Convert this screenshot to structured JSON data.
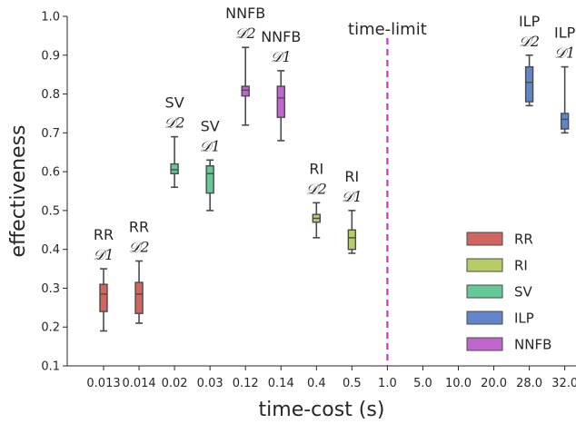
{
  "chart_data": {
    "type": "box",
    "title": "",
    "xlabel": "time-cost (s)",
    "ylabel": "effectiveness",
    "ylim": [
      0.1,
      1.0
    ],
    "yticks": [
      "0.1",
      "0.2",
      "0.3",
      "0.4",
      "0.5",
      "0.6",
      "0.7",
      "0.8",
      "0.9",
      "1.0"
    ],
    "categories": [
      "0.013",
      "0.014",
      "0.02",
      "0.03",
      "0.12",
      "0.14",
      "0.4",
      "0.5",
      "1.0",
      "5.0",
      "10.0",
      "20.0",
      "28.0",
      "32.0"
    ],
    "grid": false,
    "vline": {
      "category": "1.0",
      "label": "time-limit",
      "color": "#cc33cc"
    },
    "legend": {
      "position": "bottom-right",
      "entries": [
        {
          "name": "RR",
          "color": "#cf6760"
        },
        {
          "name": "RI",
          "color": "#b6cc66"
        },
        {
          "name": "SV",
          "color": "#66c897"
        },
        {
          "name": "ILP",
          "color": "#6185c8"
        },
        {
          "name": "NNFB",
          "color": "#bf66cc"
        }
      ]
    },
    "boxes": [
      {
        "category": "0.013",
        "group": "RR",
        "label": "RR",
        "sub": "𝒟1",
        "whisker_low": 0.19,
        "q1": 0.24,
        "median": 0.285,
        "q3": 0.31,
        "whisker_high": 0.35,
        "color": "#cf6760"
      },
      {
        "category": "0.014",
        "group": "RR",
        "label": "RR",
        "sub": "𝒟2",
        "whisker_low": 0.21,
        "q1": 0.235,
        "median": 0.285,
        "q3": 0.315,
        "whisker_high": 0.37,
        "color": "#cf6760"
      },
      {
        "category": "0.02",
        "group": "SV",
        "label": "SV",
        "sub": "𝒟2",
        "whisker_low": 0.56,
        "q1": 0.595,
        "median": 0.605,
        "q3": 0.62,
        "whisker_high": 0.69,
        "color": "#66c897"
      },
      {
        "category": "0.03",
        "group": "SV",
        "label": "SV",
        "sub": "𝒟1",
        "whisker_low": 0.5,
        "q1": 0.545,
        "median": 0.595,
        "q3": 0.615,
        "whisker_high": 0.63,
        "color": "#66c897"
      },
      {
        "category": "0.12",
        "group": "NNFB",
        "label": "NNFB",
        "sub": "𝒟2",
        "whisker_low": 0.72,
        "q1": 0.795,
        "median": 0.81,
        "q3": 0.82,
        "whisker_high": 0.92,
        "color": "#bf66cc"
      },
      {
        "category": "0.14",
        "group": "NNFB",
        "label": "NNFB",
        "sub": "𝒟1",
        "whisker_low": 0.68,
        "q1": 0.74,
        "median": 0.79,
        "q3": 0.82,
        "whisker_high": 0.86,
        "color": "#bf66cc"
      },
      {
        "category": "0.4",
        "group": "RI",
        "label": "RI",
        "sub": "𝒟2",
        "whisker_low": 0.43,
        "q1": 0.47,
        "median": 0.48,
        "q3": 0.49,
        "whisker_high": 0.52,
        "color": "#b6cc66"
      },
      {
        "category": "0.5",
        "group": "RI",
        "label": "RI",
        "sub": "𝒟1",
        "whisker_low": 0.39,
        "q1": 0.4,
        "median": 0.43,
        "q3": 0.45,
        "whisker_high": 0.5,
        "color": "#b6cc66"
      },
      {
        "category": "28.0",
        "group": "ILP",
        "label": "ILP",
        "sub": "𝒟2",
        "whisker_low": 0.77,
        "q1": 0.78,
        "median": 0.83,
        "q3": 0.87,
        "whisker_high": 0.9,
        "color": "#6185c8"
      },
      {
        "category": "32.0",
        "group": "ILP",
        "label": "ILP",
        "sub": "𝒟1",
        "whisker_low": 0.7,
        "q1": 0.71,
        "median": 0.735,
        "q3": 0.75,
        "whisker_high": 0.87,
        "color": "#6185c8"
      }
    ]
  }
}
